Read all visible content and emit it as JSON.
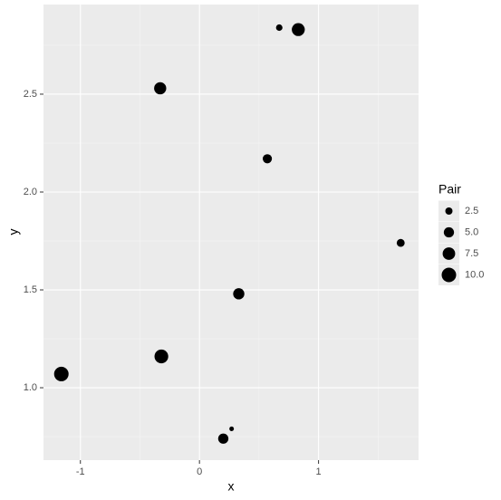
{
  "chart_data": {
    "type": "scatter",
    "x_label": "x",
    "y_label": "y",
    "series": [
      {
        "name": "points",
        "color": "#000000",
        "x": [
          0.27,
          0.67,
          1.69,
          0.57,
          0.2,
          0.33,
          -0.33,
          0.83,
          -0.32,
          -1.16
        ],
        "values": [
          0.79,
          2.84,
          1.74,
          2.17,
          0.74,
          1.48,
          2.53,
          2.83,
          1.16,
          1.07
        ],
        "sizes": [
          1,
          2,
          3,
          4,
          5,
          6,
          7,
          8,
          9,
          10
        ]
      }
    ],
    "xlim": [
      -1.31,
      1.84
    ],
    "xticks": [
      -1,
      0,
      1
    ],
    "xminor": [
      -0.5,
      0.5,
      1.5
    ],
    "ylim": [
      0.63,
      2.958
    ],
    "yticks": [
      {
        "value": 1.0,
        "label": "1.0"
      },
      1.5,
      {
        "value": 2.0,
        "label": "2.0"
      },
      2.5
    ],
    "yminor": [
      0.75,
      1.25,
      1.75,
      2.25,
      2.75
    ],
    "grid": true,
    "legend": {
      "title": "Pair",
      "position": "right",
      "entries": [
        2.5,
        {
          "value": 5.0,
          "label": "5.0"
        },
        7.5,
        {
          "value": 10.0,
          "label": "10.0"
        }
      ]
    }
  }
}
